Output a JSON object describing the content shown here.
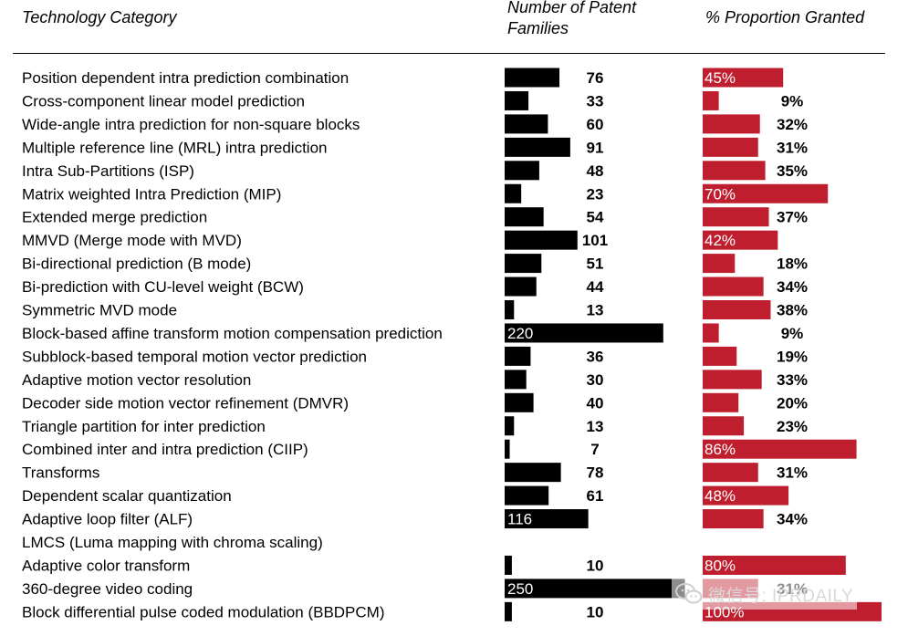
{
  "headers": {
    "category": "Technology Category",
    "patent_families": "Number of Patent Families",
    "proportion_granted": "% Proportion Granted"
  },
  "watermark": {
    "text": "微信号: IPRDAILY",
    "icon": "wechat-icon"
  },
  "colors": {
    "count_bar": "#000000",
    "pct_bar": "#be1e2d",
    "inside_label": "#ffffff"
  },
  "chart_data": {
    "type": "bar",
    "categories": [
      "Position dependent intra prediction combination",
      "Cross-component linear model prediction",
      "Wide-angle intra prediction for non-square blocks",
      "Multiple reference line (MRL) intra prediction",
      "Intra Sub-Partitions (ISP)",
      "Matrix weighted Intra Prediction (MIP)",
      "Extended merge prediction",
      "MMVD (Merge mode with MVD)",
      "Bi-directional prediction (B mode)",
      "Bi-prediction with CU-level weight (BCW)",
      "Symmetric MVD mode",
      "Block-based affine transform motion compensation prediction",
      "Subblock-based temporal motion vector prediction",
      "Adaptive motion vector resolution",
      "Decoder side motion vector refinement (DMVR)",
      "Triangle partition for inter prediction",
      "Combined inter and intra prediction (CIIP)",
      "Transforms",
      "Dependent scalar quantization",
      "Adaptive loop filter (ALF)",
      "LMCS (Luma mapping with chroma scaling)",
      "Adaptive color transform",
      "360-degree video coding",
      "Block differential pulse coded modulation (BBDPCM)"
    ],
    "series": [
      {
        "name": "Number of Patent Families",
        "values": [
          76,
          33,
          60,
          91,
          48,
          23,
          54,
          101,
          51,
          44,
          13,
          220,
          36,
          30,
          40,
          13,
          7,
          78,
          61,
          116,
          null,
          10,
          250,
          10
        ],
        "labels": [
          "76",
          "33",
          "60",
          "91",
          "48",
          "23",
          "54",
          "101",
          "51",
          "44",
          "13",
          "220",
          "36",
          "30",
          "40",
          "13",
          "7",
          "78",
          "61",
          "116",
          "",
          "10",
          "250",
          "10"
        ],
        "label_inside": [
          false,
          false,
          false,
          false,
          false,
          false,
          false,
          false,
          false,
          false,
          false,
          true,
          false,
          false,
          false,
          false,
          false,
          false,
          false,
          true,
          false,
          false,
          true,
          false
        ]
      },
      {
        "name": "% Proportion Granted",
        "values": [
          45,
          9,
          32,
          31,
          35,
          70,
          37,
          42,
          18,
          34,
          38,
          9,
          19,
          33,
          20,
          23,
          86,
          31,
          48,
          34,
          null,
          80,
          31,
          100
        ],
        "labels": [
          "45%",
          "9%",
          "32%",
          "31%",
          "35%",
          "70%",
          "37%",
          "42%",
          "18%",
          "34%",
          "38%",
          "9%",
          "19%",
          "33%",
          "20%",
          "23%",
          "86%",
          "31%",
          "48%",
          "34%",
          "",
          "80%",
          "31%",
          "100%"
        ],
        "label_inside": [
          true,
          false,
          false,
          false,
          false,
          true,
          false,
          true,
          false,
          false,
          false,
          false,
          false,
          false,
          false,
          false,
          true,
          false,
          true,
          false,
          false,
          true,
          false,
          true
        ]
      }
    ],
    "xlim_count": [
      0,
      250
    ],
    "xlim_pct": [
      0,
      100
    ],
    "grid": false,
    "legend": "none"
  }
}
